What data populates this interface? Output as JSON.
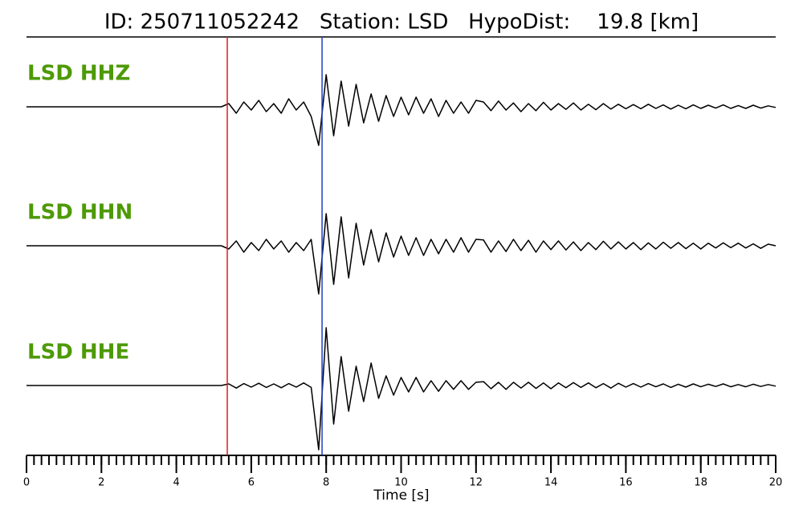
{
  "chart_data": {
    "type": "waveform",
    "title": "ID: 250711052242   Station: LSD   HypoDist:    19.8 [km]",
    "xlabel": "Time [s]",
    "xlim": [
      0,
      20
    ],
    "xticks": [
      0,
      2,
      4,
      6,
      8,
      10,
      12,
      14,
      16,
      18,
      20
    ],
    "xminor_step": 0.2,
    "picks": [
      {
        "time": 5.36,
        "color": "#e41a1c"
      },
      {
        "time": 7.89,
        "color": "#1f3fbf"
      }
    ],
    "x": [
      0,
      0.2,
      0.4,
      0.6,
      0.8,
      1,
      1.2,
      1.4,
      1.6,
      1.8,
      2,
      2.2,
      2.4,
      2.6,
      2.8,
      3,
      3.2,
      3.4,
      3.6,
      3.8,
      4,
      4.2,
      4.4,
      4.6,
      4.8,
      5,
      5.2,
      5.4,
      5.6,
      5.8,
      6,
      6.2,
      6.4,
      6.6,
      6.8,
      7,
      7.2,
      7.4,
      7.6,
      7.8,
      8,
      8.2,
      8.4,
      8.6,
      8.8,
      9,
      9.2,
      9.4,
      9.6,
      9.8,
      10,
      10.2,
      10.4,
      10.6,
      10.8,
      11,
      11.2,
      11.4,
      11.6,
      11.8,
      12,
      12.2,
      12.4,
      12.6,
      12.8,
      13,
      13.2,
      13.4,
      13.6,
      13.8,
      14,
      14.2,
      14.4,
      14.6,
      14.8,
      15,
      15.2,
      15.4,
      15.6,
      15.8,
      16,
      16.2,
      16.4,
      16.6,
      16.8,
      17,
      17.2,
      17.4,
      17.6,
      17.8,
      18,
      18.2,
      18.4,
      18.6,
      18.8,
      19,
      19.2,
      19.4,
      19.6,
      19.8,
      20
    ],
    "series": [
      {
        "name": "LSD HHZ",
        "color": "#000000",
        "values": [
          0,
          0,
          0,
          0,
          0,
          0,
          0,
          0,
          0,
          0,
          0,
          0,
          0,
          0,
          0,
          0,
          0,
          0,
          0,
          0,
          0,
          0,
          0,
          0,
          0,
          0,
          0,
          0.1,
          -0.2,
          0.15,
          -0.1,
          0.2,
          -0.15,
          0.1,
          -0.2,
          0.25,
          -0.1,
          0.15,
          -0.3,
          -1.2,
          1.0,
          -0.9,
          0.8,
          -0.6,
          0.7,
          -0.5,
          0.4,
          -0.45,
          0.35,
          -0.3,
          0.3,
          -0.25,
          0.3,
          -0.2,
          0.25,
          -0.3,
          0.2,
          -0.2,
          0.15,
          -0.2,
          0.2,
          0.15,
          -0.12,
          0.18,
          -0.1,
          0.12,
          -0.15,
          0.1,
          -0.12,
          0.14,
          -0.1,
          0.1,
          -0.08,
          0.12,
          -0.1,
          0.08,
          -0.09,
          0.1,
          -0.07,
          0.08,
          -0.06,
          0.07,
          -0.06,
          0.08,
          -0.05,
          0.06,
          -0.07,
          0.05,
          -0.06,
          0.06,
          -0.05,
          0.05,
          -0.04,
          0.06,
          -0.05,
          0.04,
          -0.05,
          0.05,
          -0.04,
          0.03,
          -0.02
        ]
      },
      {
        "name": "LSD HHN",
        "color": "#000000",
        "values": [
          0,
          0,
          0,
          0,
          0,
          0,
          0,
          0,
          0,
          0,
          0,
          0,
          0,
          0,
          0,
          0,
          0,
          0,
          0,
          0,
          0,
          0,
          0,
          0,
          0,
          0,
          0,
          -0.1,
          0.15,
          -0.2,
          0.1,
          -0.15,
          0.2,
          -0.1,
          0.15,
          -0.2,
          0.1,
          -0.15,
          0.2,
          -1.5,
          1.0,
          -1.2,
          0.9,
          -1.0,
          0.7,
          -0.6,
          0.5,
          -0.5,
          0.4,
          -0.35,
          0.3,
          -0.3,
          0.25,
          -0.3,
          0.2,
          -0.25,
          0.2,
          -0.2,
          0.25,
          -0.2,
          0.2,
          0.18,
          -0.2,
          0.15,
          -0.18,
          0.2,
          -0.15,
          0.17,
          -0.2,
          0.15,
          -0.12,
          0.15,
          -0.13,
          0.12,
          -0.15,
          0.1,
          -0.12,
          0.14,
          -0.1,
          0.12,
          -0.1,
          0.1,
          -0.12,
          0.09,
          -0.1,
          0.11,
          -0.08,
          0.1,
          -0.09,
          0.08,
          -0.1,
          0.08,
          -0.07,
          0.09,
          -0.06,
          0.08,
          -0.07,
          0.06,
          -0.08,
          0.05,
          0
        ]
      },
      {
        "name": "LSD HHE",
        "color": "#000000",
        "values": [
          0,
          0,
          0,
          0,
          0,
          0,
          0,
          0,
          0,
          0,
          0,
          0,
          0,
          0,
          0,
          0,
          0,
          0,
          0,
          0,
          0,
          0,
          0,
          0,
          0,
          0,
          0,
          0.05,
          -0.08,
          0.06,
          -0.05,
          0.07,
          -0.06,
          0.05,
          -0.07,
          0.06,
          -0.05,
          0.08,
          -0.06,
          -2.0,
          1.8,
          -1.2,
          0.9,
          -0.8,
          0.6,
          -0.5,
          0.7,
          -0.4,
          0.3,
          -0.3,
          0.25,
          -0.2,
          0.25,
          -0.2,
          0.15,
          -0.18,
          0.15,
          -0.12,
          0.15,
          -0.12,
          0.1,
          0.12,
          -0.1,
          0.1,
          -0.12,
          0.1,
          -0.08,
          0.1,
          -0.09,
          0.08,
          -0.1,
          0.08,
          -0.07,
          0.09,
          -0.06,
          0.08,
          -0.07,
          0.06,
          -0.08,
          0.07,
          -0.05,
          0.06,
          -0.05,
          0.06,
          -0.04,
          0.05,
          -0.06,
          0.04,
          -0.05,
          0.05,
          -0.04,
          0.04,
          -0.03,
          0.05,
          -0.04,
          0.03,
          -0.04,
          0.04,
          -0.03,
          0.03,
          -0.02
        ]
      }
    ]
  }
}
